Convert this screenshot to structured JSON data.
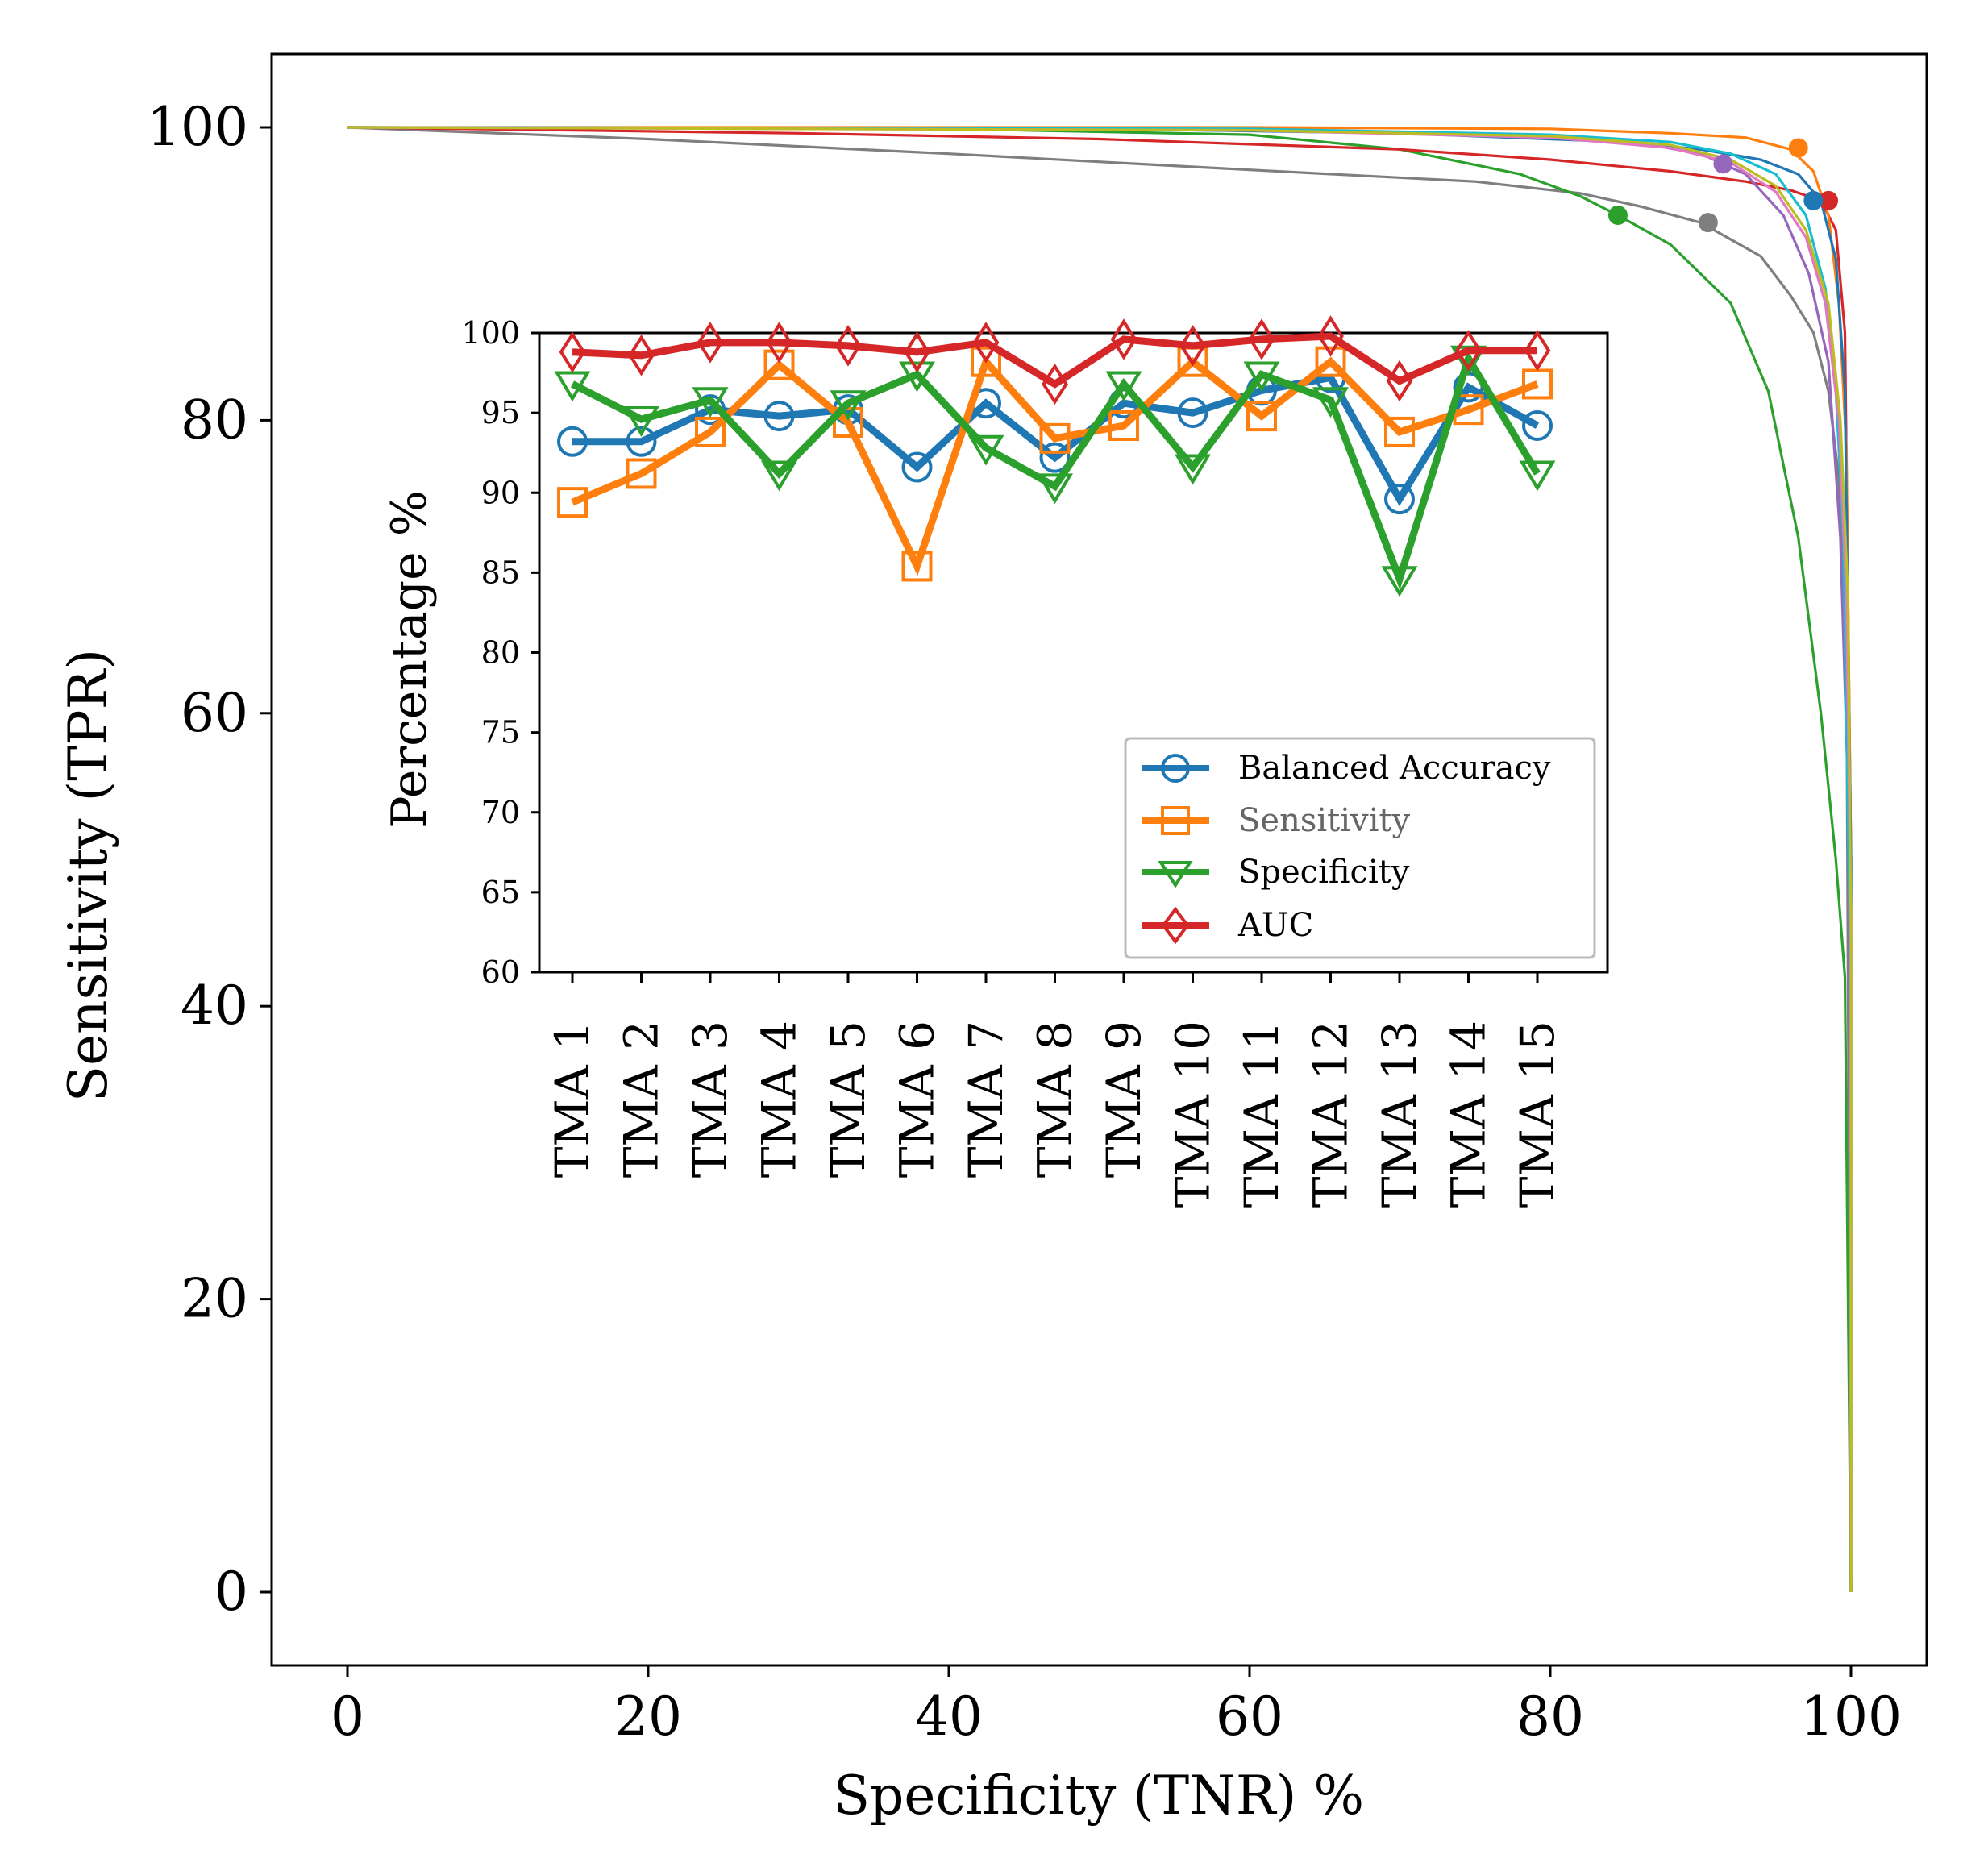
{
  "colors": {
    "blue": "#1f77b4",
    "orange": "#ff7f0e",
    "green": "#2ca02c",
    "red": "#d62728",
    "purple": "#9467bd",
    "gray": "#7f7f7f",
    "cyan": "#17becf",
    "pink": "#e377c2",
    "olive": "#bcbd22"
  },
  "chart_data": [
    {
      "type": "line",
      "xlabel": "Specificity (TNR) %",
      "ylabel": "Sensitivity (TPR)",
      "xlim": [
        -5,
        105
      ],
      "ylim": [
        -5,
        105
      ],
      "xticks": [
        0,
        20,
        40,
        60,
        80,
        100
      ],
      "yticks": [
        0,
        20,
        40,
        60,
        80,
        100
      ],
      "grid": false,
      "series": [
        {
          "color": "gray",
          "points": [
            [
              0,
              100
            ],
            [
              20,
              99.2
            ],
            [
              40,
              98.2
            ],
            [
              60,
              97.1
            ],
            [
              75,
              96.3
            ],
            [
              82,
              95.5
            ],
            [
              86,
              94.6
            ],
            [
              90,
              93.5
            ],
            [
              94,
              91.2
            ],
            [
              96,
              88.5
            ],
            [
              97.5,
              86
            ],
            [
              98.5,
              82
            ],
            [
              99.2,
              76
            ],
            [
              99.7,
              65
            ],
            [
              100,
              0
            ]
          ],
          "operating_point": [
            90.5,
            93.5
          ]
        },
        {
          "color": "green",
          "points": [
            [
              0,
              100
            ],
            [
              40,
              99.9
            ],
            [
              60,
              99.5
            ],
            [
              70,
              98.5
            ],
            [
              78,
              96.8
            ],
            [
              82,
              95.3
            ],
            [
              84.5,
              94
            ],
            [
              88,
              92
            ],
            [
              92,
              88
            ],
            [
              94.5,
              82
            ],
            [
              96.5,
              72
            ],
            [
              98,
              60
            ],
            [
              99,
              50
            ],
            [
              99.6,
              42
            ],
            [
              100,
              0
            ]
          ],
          "operating_point": [
            84.5,
            94
          ]
        },
        {
          "color": "red",
          "points": [
            [
              0,
              100
            ],
            [
              30,
              99.6
            ],
            [
              50,
              99.2
            ],
            [
              70,
              98.5
            ],
            [
              80,
              97.8
            ],
            [
              88,
              97
            ],
            [
              93,
              96.3
            ],
            [
              96,
              95.7
            ],
            [
              98,
              95
            ],
            [
              99,
              93
            ],
            [
              99.6,
              86
            ],
            [
              100,
              50
            ],
            [
              100,
              0
            ]
          ],
          "operating_point": [
            98.5,
            95
          ]
        },
        {
          "color": "orange",
          "points": [
            [
              0,
              100
            ],
            [
              40,
              100
            ],
            [
              60,
              100
            ],
            [
              80,
              99.9
            ],
            [
              88,
              99.6
            ],
            [
              93,
              99.3
            ],
            [
              96,
              98.5
            ],
            [
              97.5,
              97
            ],
            [
              98.5,
              94
            ],
            [
              99.2,
              88
            ],
            [
              99.7,
              78
            ],
            [
              100,
              50
            ],
            [
              100,
              0
            ]
          ],
          "operating_point": [
            96.5,
            98.6
          ]
        },
        {
          "color": "blue",
          "points": [
            [
              0,
              100
            ],
            [
              50,
              99.9
            ],
            [
              70,
              99.6
            ],
            [
              85,
              99
            ],
            [
              90,
              98.5
            ],
            [
              94,
              97.8
            ],
            [
              96.5,
              96.8
            ],
            [
              98,
              95
            ],
            [
              99,
              91
            ],
            [
              99.6,
              82
            ],
            [
              100,
              50
            ],
            [
              100,
              0
            ]
          ],
          "operating_point": [
            97.5,
            95
          ]
        },
        {
          "color": "purple",
          "points": [
            [
              0,
              100
            ],
            [
              50,
              99.9
            ],
            [
              75,
              99.6
            ],
            [
              85,
              99.1
            ],
            [
              90,
              98.2
            ],
            [
              93,
              96.8
            ],
            [
              95.5,
              94
            ],
            [
              97.2,
              90
            ],
            [
              98.5,
              84
            ],
            [
              99.3,
              72
            ],
            [
              99.8,
              55
            ],
            [
              100,
              0
            ]
          ],
          "operating_point": [
            91.5,
            97.5
          ]
        },
        {
          "color": "cyan",
          "points": [
            [
              0,
              100
            ],
            [
              60,
              99.9
            ],
            [
              80,
              99.5
            ],
            [
              88,
              99
            ],
            [
              92,
              98.2
            ],
            [
              95,
              96.8
            ],
            [
              97,
              94
            ],
            [
              98.3,
              89
            ],
            [
              99,
              82
            ],
            [
              99.5,
              72
            ],
            [
              100,
              40
            ],
            [
              100,
              0
            ]
          ],
          "operating_point": null
        },
        {
          "color": "pink",
          "points": [
            [
              0,
              100
            ],
            [
              60,
              99.8
            ],
            [
              80,
              99.3
            ],
            [
              88,
              98.6
            ],
            [
              92,
              97.6
            ],
            [
              95,
              95.6
            ],
            [
              97,
              92.5
            ],
            [
              98.3,
              88
            ],
            [
              99.2,
              80
            ],
            [
              99.7,
              68
            ],
            [
              100,
              45
            ],
            [
              100,
              0
            ]
          ],
          "operating_point": null
        },
        {
          "color": "olive",
          "points": [
            [
              0,
              100
            ],
            [
              60,
              99.8
            ],
            [
              80,
              99.4
            ],
            [
              88,
              98.8
            ],
            [
              92,
              97.8
            ],
            [
              95,
              96
            ],
            [
              97,
              93
            ],
            [
              98.5,
              88
            ],
            [
              99.3,
              80
            ],
            [
              99.8,
              68
            ],
            [
              100,
              45
            ],
            [
              100,
              0
            ]
          ],
          "operating_point": null
        }
      ]
    },
    {
      "type": "line",
      "xlabel": "",
      "ylabel": "Percentage %",
      "ylim": [
        60,
        100
      ],
      "yticks": [
        60,
        65,
        70,
        75,
        80,
        85,
        90,
        95,
        100
      ],
      "grid": false,
      "legend_placement": "lower-right",
      "categories": [
        "TMA 1",
        "TMA 2",
        "TMA 3",
        "TMA 4",
        "TMA 5",
        "TMA 6",
        "TMA 7",
        "TMA 8",
        "TMA 9",
        "TMA 10",
        "TMA 11",
        "TMA 12",
        "TMA 13",
        "TMA 14",
        "TMA 15"
      ],
      "series": [
        {
          "name": "Balanced Accuracy",
          "color": "blue",
          "marker": "circle",
          "values": [
            93.2,
            93.2,
            95.2,
            94.8,
            95.2,
            91.6,
            95.6,
            92.2,
            95.6,
            95.0,
            96.4,
            97.2,
            89.6,
            96.6,
            94.2
          ]
        },
        {
          "name": "Sensitivity",
          "color": "orange",
          "marker": "square",
          "values": [
            89.4,
            91.2,
            93.8,
            98.0,
            94.4,
            85.4,
            98.2,
            93.4,
            94.2,
            98.2,
            94.8,
            98.2,
            93.8,
            95.2,
            96.8
          ]
        },
        {
          "name": "Specificity",
          "color": "green",
          "marker": "triangle",
          "values": [
            96.8,
            94.6,
            95.8,
            91.2,
            95.6,
            97.4,
            92.8,
            90.4,
            96.8,
            91.6,
            97.4,
            95.8,
            84.6,
            98.4,
            91.2
          ]
        },
        {
          "name": "AUC",
          "color": "red",
          "marker": "diamond",
          "values": [
            98.8,
            98.6,
            99.4,
            99.4,
            99.2,
            98.8,
            99.4,
            96.8,
            99.6,
            99.2,
            99.6,
            99.8,
            97.0,
            98.9,
            98.9
          ]
        }
      ]
    }
  ]
}
